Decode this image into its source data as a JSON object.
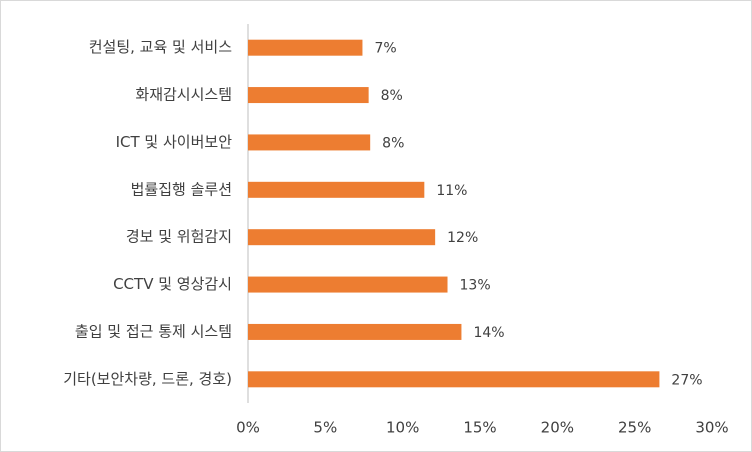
{
  "chart_data": {
    "type": "hbar",
    "categories": [
      "컨설팅, 교육 및 서비스",
      "화재감시시스템",
      "ICT 및 사이버보안",
      "법률집행 솔루션",
      "경보 및 위험감지",
      "CCTV 및 영상감시",
      "출입 및 접근 통제 시스템",
      "기타(보안차량, 드론, 경호)"
    ],
    "values": [
      7.4,
      7.8,
      7.9,
      11.4,
      12.1,
      12.9,
      13.8,
      26.6
    ],
    "value_labels": [
      "7%",
      "8%",
      "8%",
      "11%",
      "12%",
      "13%",
      "14%",
      "27%"
    ],
    "color": "#ed7d31",
    "xlim": [
      0,
      30
    ],
    "xticks": [
      {
        "value": 0,
        "label": "0%"
      },
      {
        "value": 5,
        "label": "5%"
      },
      {
        "value": 10,
        "label": "10%"
      },
      {
        "value": 15,
        "label": "15%"
      },
      {
        "value": 20,
        "label": "20%"
      },
      {
        "value": 25,
        "label": "25%"
      },
      {
        "value": 30,
        "label": "30%"
      }
    ],
    "grid": false
  }
}
